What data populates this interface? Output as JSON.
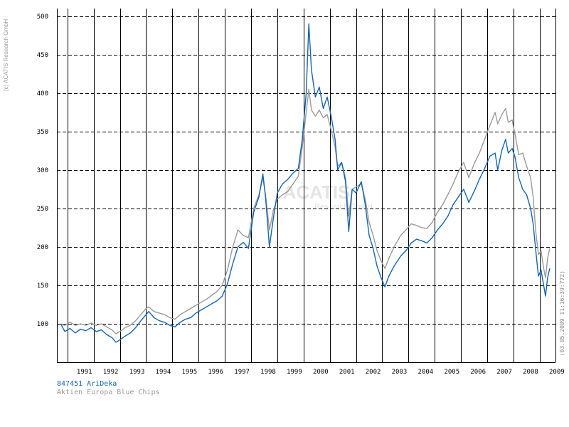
{
  "copyright": "(c) ACATIS Research GmbH",
  "watermark": {
    "line1": "ACATIS",
    "line2": "Research GmbH"
  },
  "timestamp": "(03.05.2009 11:16:39:772)",
  "chart_data": {
    "type": "line",
    "x_ticks": [
      "1991",
      "1992",
      "1993",
      "1994",
      "1995",
      "1996",
      "1997",
      "1998",
      "1999",
      "2000",
      "2001",
      "2002",
      "2003",
      "2004",
      "2005",
      "2006",
      "2007",
      "2008",
      "2009"
    ],
    "y_ticks": [
      100,
      150,
      200,
      250,
      300,
      350,
      400,
      450,
      500
    ],
    "xlim": [
      1990.6,
      2009.6
    ],
    "ylim": [
      50,
      510
    ],
    "grid": true,
    "legend_position": "bottom-left",
    "series": [
      {
        "name": "847451 AriDeka",
        "color": "#1565b4",
        "points": [
          [
            1990.75,
            100
          ],
          [
            1990.9,
            90
          ],
          [
            1991.1,
            94
          ],
          [
            1991.3,
            88
          ],
          [
            1991.5,
            93
          ],
          [
            1991.7,
            91
          ],
          [
            1991.9,
            95
          ],
          [
            1992.1,
            90
          ],
          [
            1992.3,
            92
          ],
          [
            1992.5,
            86
          ],
          [
            1992.7,
            82
          ],
          [
            1992.85,
            76
          ],
          [
            1993.0,
            79
          ],
          [
            1993.2,
            84
          ],
          [
            1993.4,
            88
          ],
          [
            1993.6,
            95
          ],
          [
            1993.8,
            104
          ],
          [
            1994.0,
            112
          ],
          [
            1994.1,
            116
          ],
          [
            1994.3,
            108
          ],
          [
            1994.5,
            104
          ],
          [
            1994.7,
            102
          ],
          [
            1994.9,
            98
          ],
          [
            1995.1,
            96
          ],
          [
            1995.3,
            102
          ],
          [
            1995.5,
            106
          ],
          [
            1995.7,
            108
          ],
          [
            1995.9,
            114
          ],
          [
            1996.1,
            118
          ],
          [
            1996.3,
            122
          ],
          [
            1996.5,
            126
          ],
          [
            1996.7,
            130
          ],
          [
            1996.9,
            136
          ],
          [
            1997.1,
            152
          ],
          [
            1997.3,
            178
          ],
          [
            1997.5,
            200
          ],
          [
            1997.7,
            206
          ],
          [
            1997.9,
            198
          ],
          [
            1998.1,
            245
          ],
          [
            1998.3,
            265
          ],
          [
            1998.45,
            295
          ],
          [
            1998.55,
            265
          ],
          [
            1998.7,
            200
          ],
          [
            1998.85,
            238
          ],
          [
            1999.0,
            270
          ],
          [
            1999.2,
            282
          ],
          [
            1999.4,
            288
          ],
          [
            1999.6,
            296
          ],
          [
            1999.8,
            302
          ],
          [
            1999.95,
            340
          ],
          [
            2000.1,
            400
          ],
          [
            2000.2,
            490
          ],
          [
            2000.3,
            430
          ],
          [
            2000.45,
            395
          ],
          [
            2000.6,
            408
          ],
          [
            2000.75,
            380
          ],
          [
            2000.9,
            395
          ],
          [
            2001.05,
            370
          ],
          [
            2001.2,
            340
          ],
          [
            2001.3,
            300
          ],
          [
            2001.45,
            310
          ],
          [
            2001.6,
            285
          ],
          [
            2001.72,
            220
          ],
          [
            2001.85,
            275
          ],
          [
            2002.0,
            270
          ],
          [
            2002.2,
            285
          ],
          [
            2002.35,
            255
          ],
          [
            2002.5,
            215
          ],
          [
            2002.65,
            198
          ],
          [
            2002.8,
            175
          ],
          [
            2002.95,
            160
          ],
          [
            2003.1,
            148
          ],
          [
            2003.25,
            162
          ],
          [
            2003.45,
            175
          ],
          [
            2003.7,
            188
          ],
          [
            2003.9,
            195
          ],
          [
            2004.1,
            205
          ],
          [
            2004.3,
            210
          ],
          [
            2004.5,
            208
          ],
          [
            2004.7,
            205
          ],
          [
            2004.9,
            212
          ],
          [
            2005.1,
            222
          ],
          [
            2005.3,
            230
          ],
          [
            2005.5,
            240
          ],
          [
            2005.7,
            255
          ],
          [
            2005.9,
            265
          ],
          [
            2006.1,
            275
          ],
          [
            2006.3,
            258
          ],
          [
            2006.5,
            272
          ],
          [
            2006.7,
            288
          ],
          [
            2006.9,
            302
          ],
          [
            2007.1,
            318
          ],
          [
            2007.3,
            322
          ],
          [
            2007.4,
            300
          ],
          [
            2007.55,
            325
          ],
          [
            2007.7,
            340
          ],
          [
            2007.8,
            322
          ],
          [
            2007.95,
            328
          ],
          [
            2008.05,
            318
          ],
          [
            2008.2,
            290
          ],
          [
            2008.35,
            275
          ],
          [
            2008.5,
            268
          ],
          [
            2008.65,
            250
          ],
          [
            2008.75,
            230
          ],
          [
            2008.85,
            195
          ],
          [
            2008.95,
            162
          ],
          [
            2009.05,
            170
          ],
          [
            2009.15,
            150
          ],
          [
            2009.22,
            136
          ],
          [
            2009.3,
            160
          ],
          [
            2009.38,
            172
          ]
        ]
      },
      {
        "name": "Aktien Europa Blue Chips",
        "color": "#9a9a9a",
        "points": [
          [
            1990.75,
            100
          ],
          [
            1990.9,
            98
          ],
          [
            1991.1,
            102
          ],
          [
            1991.3,
            98
          ],
          [
            1991.5,
            100
          ],
          [
            1991.7,
            98
          ],
          [
            1991.9,
            101
          ],
          [
            1992.1,
            98
          ],
          [
            1992.3,
            100
          ],
          [
            1992.5,
            96
          ],
          [
            1992.7,
            92
          ],
          [
            1992.85,
            87
          ],
          [
            1993.0,
            90
          ],
          [
            1993.2,
            95
          ],
          [
            1993.4,
            98
          ],
          [
            1993.6,
            104
          ],
          [
            1993.8,
            112
          ],
          [
            1994.0,
            120
          ],
          [
            1994.1,
            122
          ],
          [
            1994.3,
            116
          ],
          [
            1994.5,
            114
          ],
          [
            1994.7,
            112
          ],
          [
            1994.9,
            108
          ],
          [
            1995.1,
            106
          ],
          [
            1995.3,
            112
          ],
          [
            1995.5,
            116
          ],
          [
            1995.7,
            120
          ],
          [
            1995.9,
            124
          ],
          [
            1996.1,
            128
          ],
          [
            1996.3,
            132
          ],
          [
            1996.5,
            137
          ],
          [
            1996.7,
            142
          ],
          [
            1996.9,
            150
          ],
          [
            1997.1,
            170
          ],
          [
            1997.3,
            200
          ],
          [
            1997.5,
            222
          ],
          [
            1997.7,
            215
          ],
          [
            1997.9,
            212
          ],
          [
            1998.1,
            250
          ],
          [
            1998.3,
            268
          ],
          [
            1998.45,
            290
          ],
          [
            1998.55,
            268
          ],
          [
            1998.7,
            222
          ],
          [
            1998.85,
            248
          ],
          [
            1999.0,
            262
          ],
          [
            1999.2,
            268
          ],
          [
            1999.4,
            272
          ],
          [
            1999.6,
            282
          ],
          [
            1999.8,
            292
          ],
          [
            1999.95,
            330
          ],
          [
            2000.1,
            375
          ],
          [
            2000.2,
            405
          ],
          [
            2000.3,
            378
          ],
          [
            2000.45,
            370
          ],
          [
            2000.6,
            378
          ],
          [
            2000.75,
            368
          ],
          [
            2000.9,
            372
          ],
          [
            2001.05,
            352
          ],
          [
            2001.2,
            330
          ],
          [
            2001.3,
            305
          ],
          [
            2001.45,
            310
          ],
          [
            2001.6,
            290
          ],
          [
            2001.72,
            240
          ],
          [
            2001.85,
            275
          ],
          [
            2002.0,
            278
          ],
          [
            2002.2,
            282
          ],
          [
            2002.35,
            262
          ],
          [
            2002.5,
            232
          ],
          [
            2002.65,
            215
          ],
          [
            2002.8,
            195
          ],
          [
            2002.95,
            182
          ],
          [
            2003.1,
            172
          ],
          [
            2003.25,
            185
          ],
          [
            2003.45,
            200
          ],
          [
            2003.7,
            215
          ],
          [
            2003.9,
            222
          ],
          [
            2004.1,
            230
          ],
          [
            2004.3,
            228
          ],
          [
            2004.5,
            225
          ],
          [
            2004.7,
            224
          ],
          [
            2004.9,
            232
          ],
          [
            2005.1,
            245
          ],
          [
            2005.3,
            255
          ],
          [
            2005.5,
            268
          ],
          [
            2005.7,
            282
          ],
          [
            2005.9,
            298
          ],
          [
            2006.1,
            310
          ],
          [
            2006.3,
            290
          ],
          [
            2006.5,
            308
          ],
          [
            2006.7,
            322
          ],
          [
            2006.9,
            340
          ],
          [
            2007.1,
            358
          ],
          [
            2007.3,
            375
          ],
          [
            2007.4,
            360
          ],
          [
            2007.55,
            372
          ],
          [
            2007.7,
            380
          ],
          [
            2007.8,
            362
          ],
          [
            2007.95,
            365
          ],
          [
            2008.05,
            348
          ],
          [
            2008.2,
            320
          ],
          [
            2008.35,
            322
          ],
          [
            2008.5,
            305
          ],
          [
            2008.65,
            290
          ],
          [
            2008.75,
            265
          ],
          [
            2008.85,
            220
          ],
          [
            2008.95,
            190
          ],
          [
            2009.05,
            195
          ],
          [
            2009.15,
            172
          ],
          [
            2009.22,
            160
          ],
          [
            2009.3,
            185
          ],
          [
            2009.38,
            198
          ]
        ]
      }
    ]
  }
}
